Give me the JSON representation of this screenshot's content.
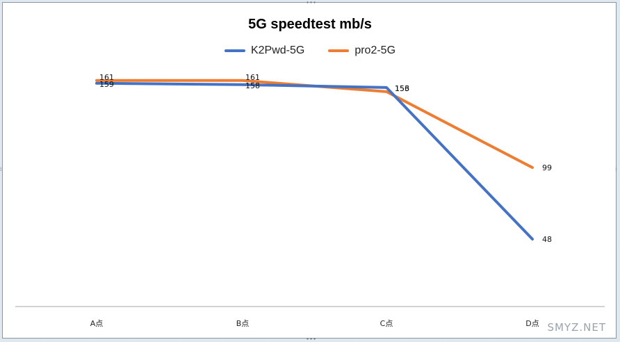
{
  "chart_data": {
    "type": "line",
    "title": "5G speedtest mb/s",
    "categories": [
      "A点",
      "B点",
      "C点",
      "D点"
    ],
    "ylim": [
      0,
      200
    ],
    "grid": false,
    "legend_position": "top-center",
    "series": [
      {
        "name": "K2Pwd-5G",
        "color": "#4472c4",
        "values": [
          159,
          158,
          156,
          48
        ]
      },
      {
        "name": "pro2-5G",
        "color": "#ed7d31",
        "values": [
          161,
          161,
          153,
          99
        ]
      }
    ]
  },
  "watermark": "SMYZ.NET"
}
